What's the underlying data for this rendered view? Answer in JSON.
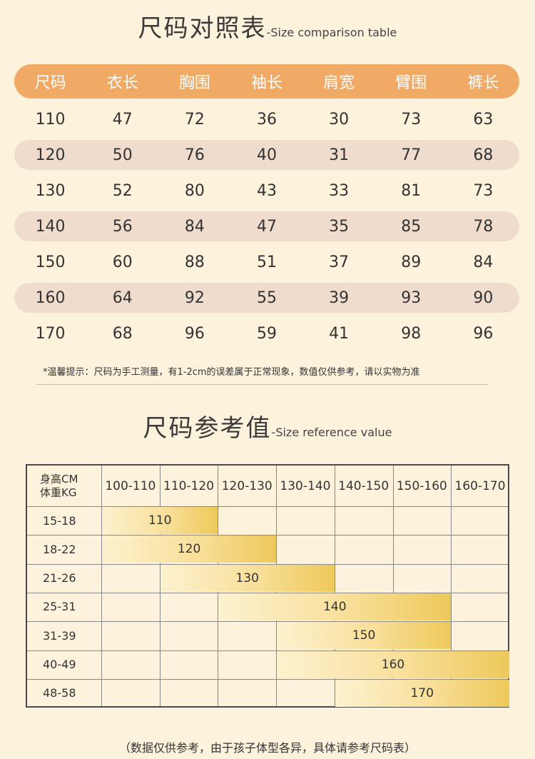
{
  "section1": {
    "title_cn": "尺码对照表",
    "title_en": "-Size comparison table",
    "headers": [
      "尺码",
      "衣长",
      "胸围",
      "袖长",
      "肩宽",
      "臂围",
      "裤长"
    ],
    "rows": [
      [
        "110",
        "47",
        "72",
        "36",
        "30",
        "73",
        "63"
      ],
      [
        "120",
        "50",
        "76",
        "40",
        "31",
        "77",
        "68"
      ],
      [
        "130",
        "52",
        "80",
        "43",
        "33",
        "81",
        "73"
      ],
      [
        "140",
        "56",
        "84",
        "47",
        "35",
        "85",
        "78"
      ],
      [
        "150",
        "60",
        "88",
        "51",
        "37",
        "89",
        "84"
      ],
      [
        "160",
        "64",
        "92",
        "55",
        "39",
        "93",
        "90"
      ],
      [
        "170",
        "68",
        "96",
        "59",
        "41",
        "98",
        "96"
      ]
    ],
    "note": "*温馨提示：尺码为手工测量，有1-2cm的误差属于正常现象，数值仅供参考，请以实物为准"
  },
  "section2": {
    "title_cn": "尺码参考值",
    "title_en": "-Size reference value",
    "corner_line1": "身高CM",
    "corner_line2": "体重KG",
    "height_ranges": [
      "100-110",
      "110-120",
      "120-130",
      "130-140",
      "140-150",
      "150-160",
      "160-170"
    ],
    "rows": [
      {
        "weight": "15-18",
        "size": "110",
        "height_from": "100-110",
        "height_to": "110-120"
      },
      {
        "weight": "18-22",
        "size": "120",
        "height_from": "100-110",
        "height_to": "120-130"
      },
      {
        "weight": "21-26",
        "size": "130",
        "height_from": "110-120",
        "height_to": "130-140"
      },
      {
        "weight": "25-31",
        "size": "140",
        "height_from": "120-130",
        "height_to": "150-160"
      },
      {
        "weight": "31-39",
        "size": "150",
        "height_from": "130-140",
        "height_to": "150-160"
      },
      {
        "weight": "40-49",
        "size": "160",
        "height_from": "130-140",
        "height_to": "160-170"
      },
      {
        "weight": "48-58",
        "size": "170",
        "height_from": "140-150",
        "height_to": "160-170"
      }
    ],
    "footnote": "（数据仅供参考，由于孩子体型各异，具体请参考尺码表）"
  },
  "colors": {
    "background": "#fdf3dd",
    "header_orange": "#f0aa66",
    "row_shade": "#efdccd",
    "bar_gold": "#eec95a"
  }
}
